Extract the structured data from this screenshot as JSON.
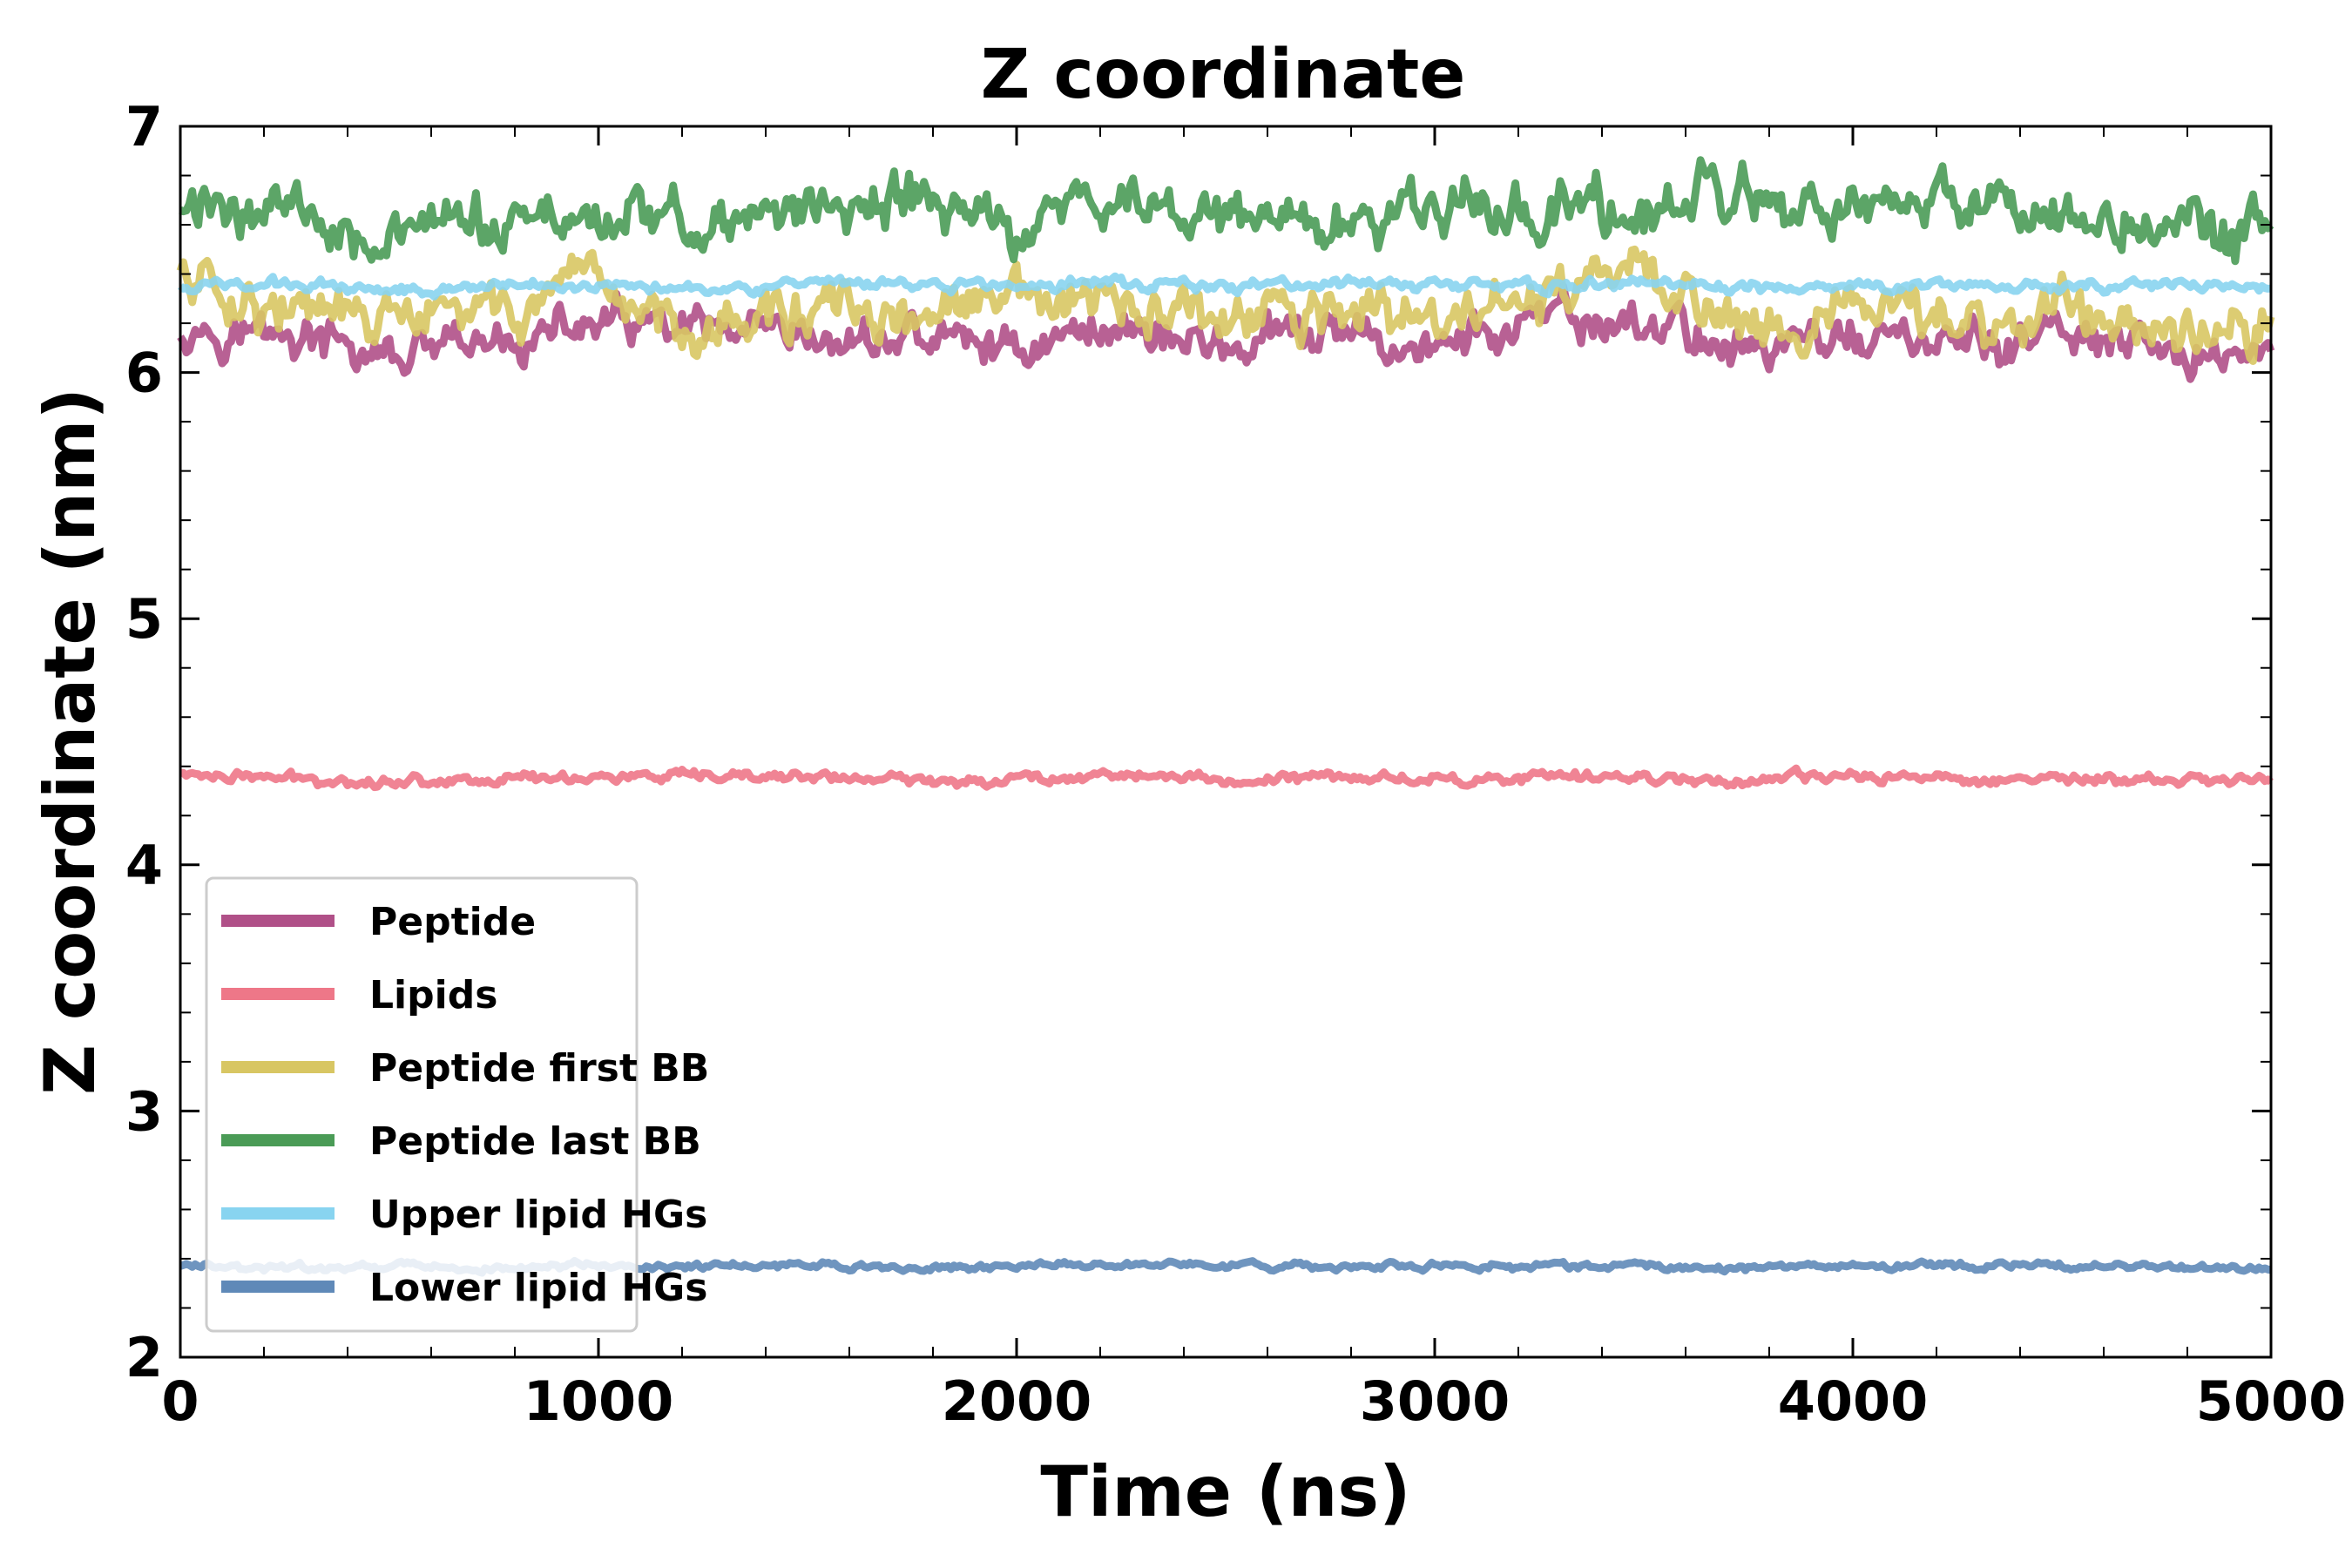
{
  "chart_data": {
    "type": "line",
    "title": "Z coordinate",
    "xlabel": "Time (ns)",
    "ylabel": "Z coordinate (nm)",
    "xlim": [
      0,
      5000
    ],
    "ylim": [
      2,
      7
    ],
    "xticks": [
      0,
      1000,
      2000,
      3000,
      4000,
      5000
    ],
    "yticks": [
      2,
      3,
      4,
      5,
      6,
      7
    ],
    "grid": false,
    "legend_position": "lower-left",
    "series": [
      {
        "name": "Peptide",
        "color": "#b05088",
        "mean": 6.15,
        "amplitude": 0.12,
        "x": [
          0,
          250,
          500,
          750,
          1000,
          1250,
          1500,
          1750,
          2000,
          2250,
          2500,
          2750,
          3000,
          3250,
          3500,
          3750,
          4000,
          4250,
          4500,
          4750,
          5000
        ],
        "values": [
          6.2,
          6.15,
          6.05,
          6.1,
          6.2,
          6.15,
          6.1,
          6.15,
          6.1,
          6.2,
          6.1,
          6.15,
          6.1,
          6.2,
          6.2,
          6.1,
          6.15,
          6.1,
          6.15,
          6.05,
          6.1
        ]
      },
      {
        "name": "Lipids",
        "color": "#ee7788",
        "mean": 4.35,
        "amplitude": 0.03,
        "x": [
          0,
          250,
          500,
          750,
          1000,
          1250,
          1500,
          1750,
          2000,
          2250,
          2500,
          2750,
          3000,
          3250,
          3500,
          3750,
          4000,
          4250,
          4500,
          4750,
          5000
        ],
        "values": [
          4.37,
          4.35,
          4.34,
          4.35,
          4.36,
          4.35,
          4.36,
          4.34,
          4.35,
          4.37,
          4.34,
          4.36,
          4.35,
          4.35,
          4.36,
          4.34,
          4.36,
          4.35,
          4.35,
          4.34,
          4.35
        ]
      },
      {
        "name": "Peptide first BB",
        "color": "#d8c663",
        "mean": 6.25,
        "amplitude": 0.14,
        "x": [
          0,
          250,
          500,
          750,
          1000,
          1250,
          1500,
          1750,
          2000,
          2250,
          2500,
          2750,
          3000,
          3250,
          3500,
          3750,
          4000,
          4250,
          4500,
          4750,
          5000
        ],
        "values": [
          6.4,
          6.25,
          6.2,
          6.25,
          6.3,
          6.2,
          6.25,
          6.2,
          6.3,
          6.25,
          6.2,
          6.25,
          6.2,
          6.3,
          6.4,
          6.2,
          6.25,
          6.2,
          6.25,
          6.2,
          6.2
        ]
      },
      {
        "name": "Peptide last BB",
        "color": "#4a9b56",
        "mean": 6.65,
        "amplitude": 0.15,
        "x": [
          0,
          250,
          500,
          750,
          1000,
          1250,
          1500,
          1750,
          2000,
          2250,
          2500,
          2750,
          3000,
          3250,
          3500,
          3750,
          4000,
          4250,
          4500,
          4750,
          5000
        ],
        "values": [
          6.65,
          6.7,
          6.55,
          6.6,
          6.65,
          6.6,
          6.65,
          6.7,
          6.6,
          6.7,
          6.65,
          6.6,
          6.65,
          6.7,
          6.65,
          6.7,
          6.6,
          6.7,
          6.65,
          6.6,
          6.55
        ]
      },
      {
        "name": "Upper lipid HGs",
        "color": "#88d4f0",
        "mean": 6.35,
        "amplitude": 0.03,
        "x": [
          0,
          250,
          500,
          750,
          1000,
          1250,
          1500,
          1750,
          2000,
          2250,
          2500,
          2750,
          3000,
          3250,
          3500,
          3750,
          4000,
          4250,
          4500,
          4750,
          5000
        ],
        "values": [
          6.35,
          6.36,
          6.34,
          6.35,
          6.36,
          6.35,
          6.35,
          6.36,
          6.35,
          6.37,
          6.35,
          6.36,
          6.36,
          6.35,
          6.36,
          6.34,
          6.35,
          6.36,
          6.35,
          6.35,
          6.34
        ]
      },
      {
        "name": "Lower lipid HGs",
        "color": "#5f89b8",
        "mean": 2.37,
        "amplitude": 0.02,
        "x": [
          0,
          250,
          500,
          750,
          1000,
          1250,
          1500,
          1750,
          2000,
          2250,
          2500,
          2750,
          3000,
          3250,
          3500,
          3750,
          4000,
          4250,
          4500,
          4750,
          5000
        ],
        "values": [
          2.37,
          2.36,
          2.37,
          2.36,
          2.37,
          2.37,
          2.37,
          2.36,
          2.37,
          2.38,
          2.37,
          2.37,
          2.37,
          2.37,
          2.37,
          2.36,
          2.37,
          2.37,
          2.37,
          2.36,
          2.36
        ]
      }
    ]
  }
}
